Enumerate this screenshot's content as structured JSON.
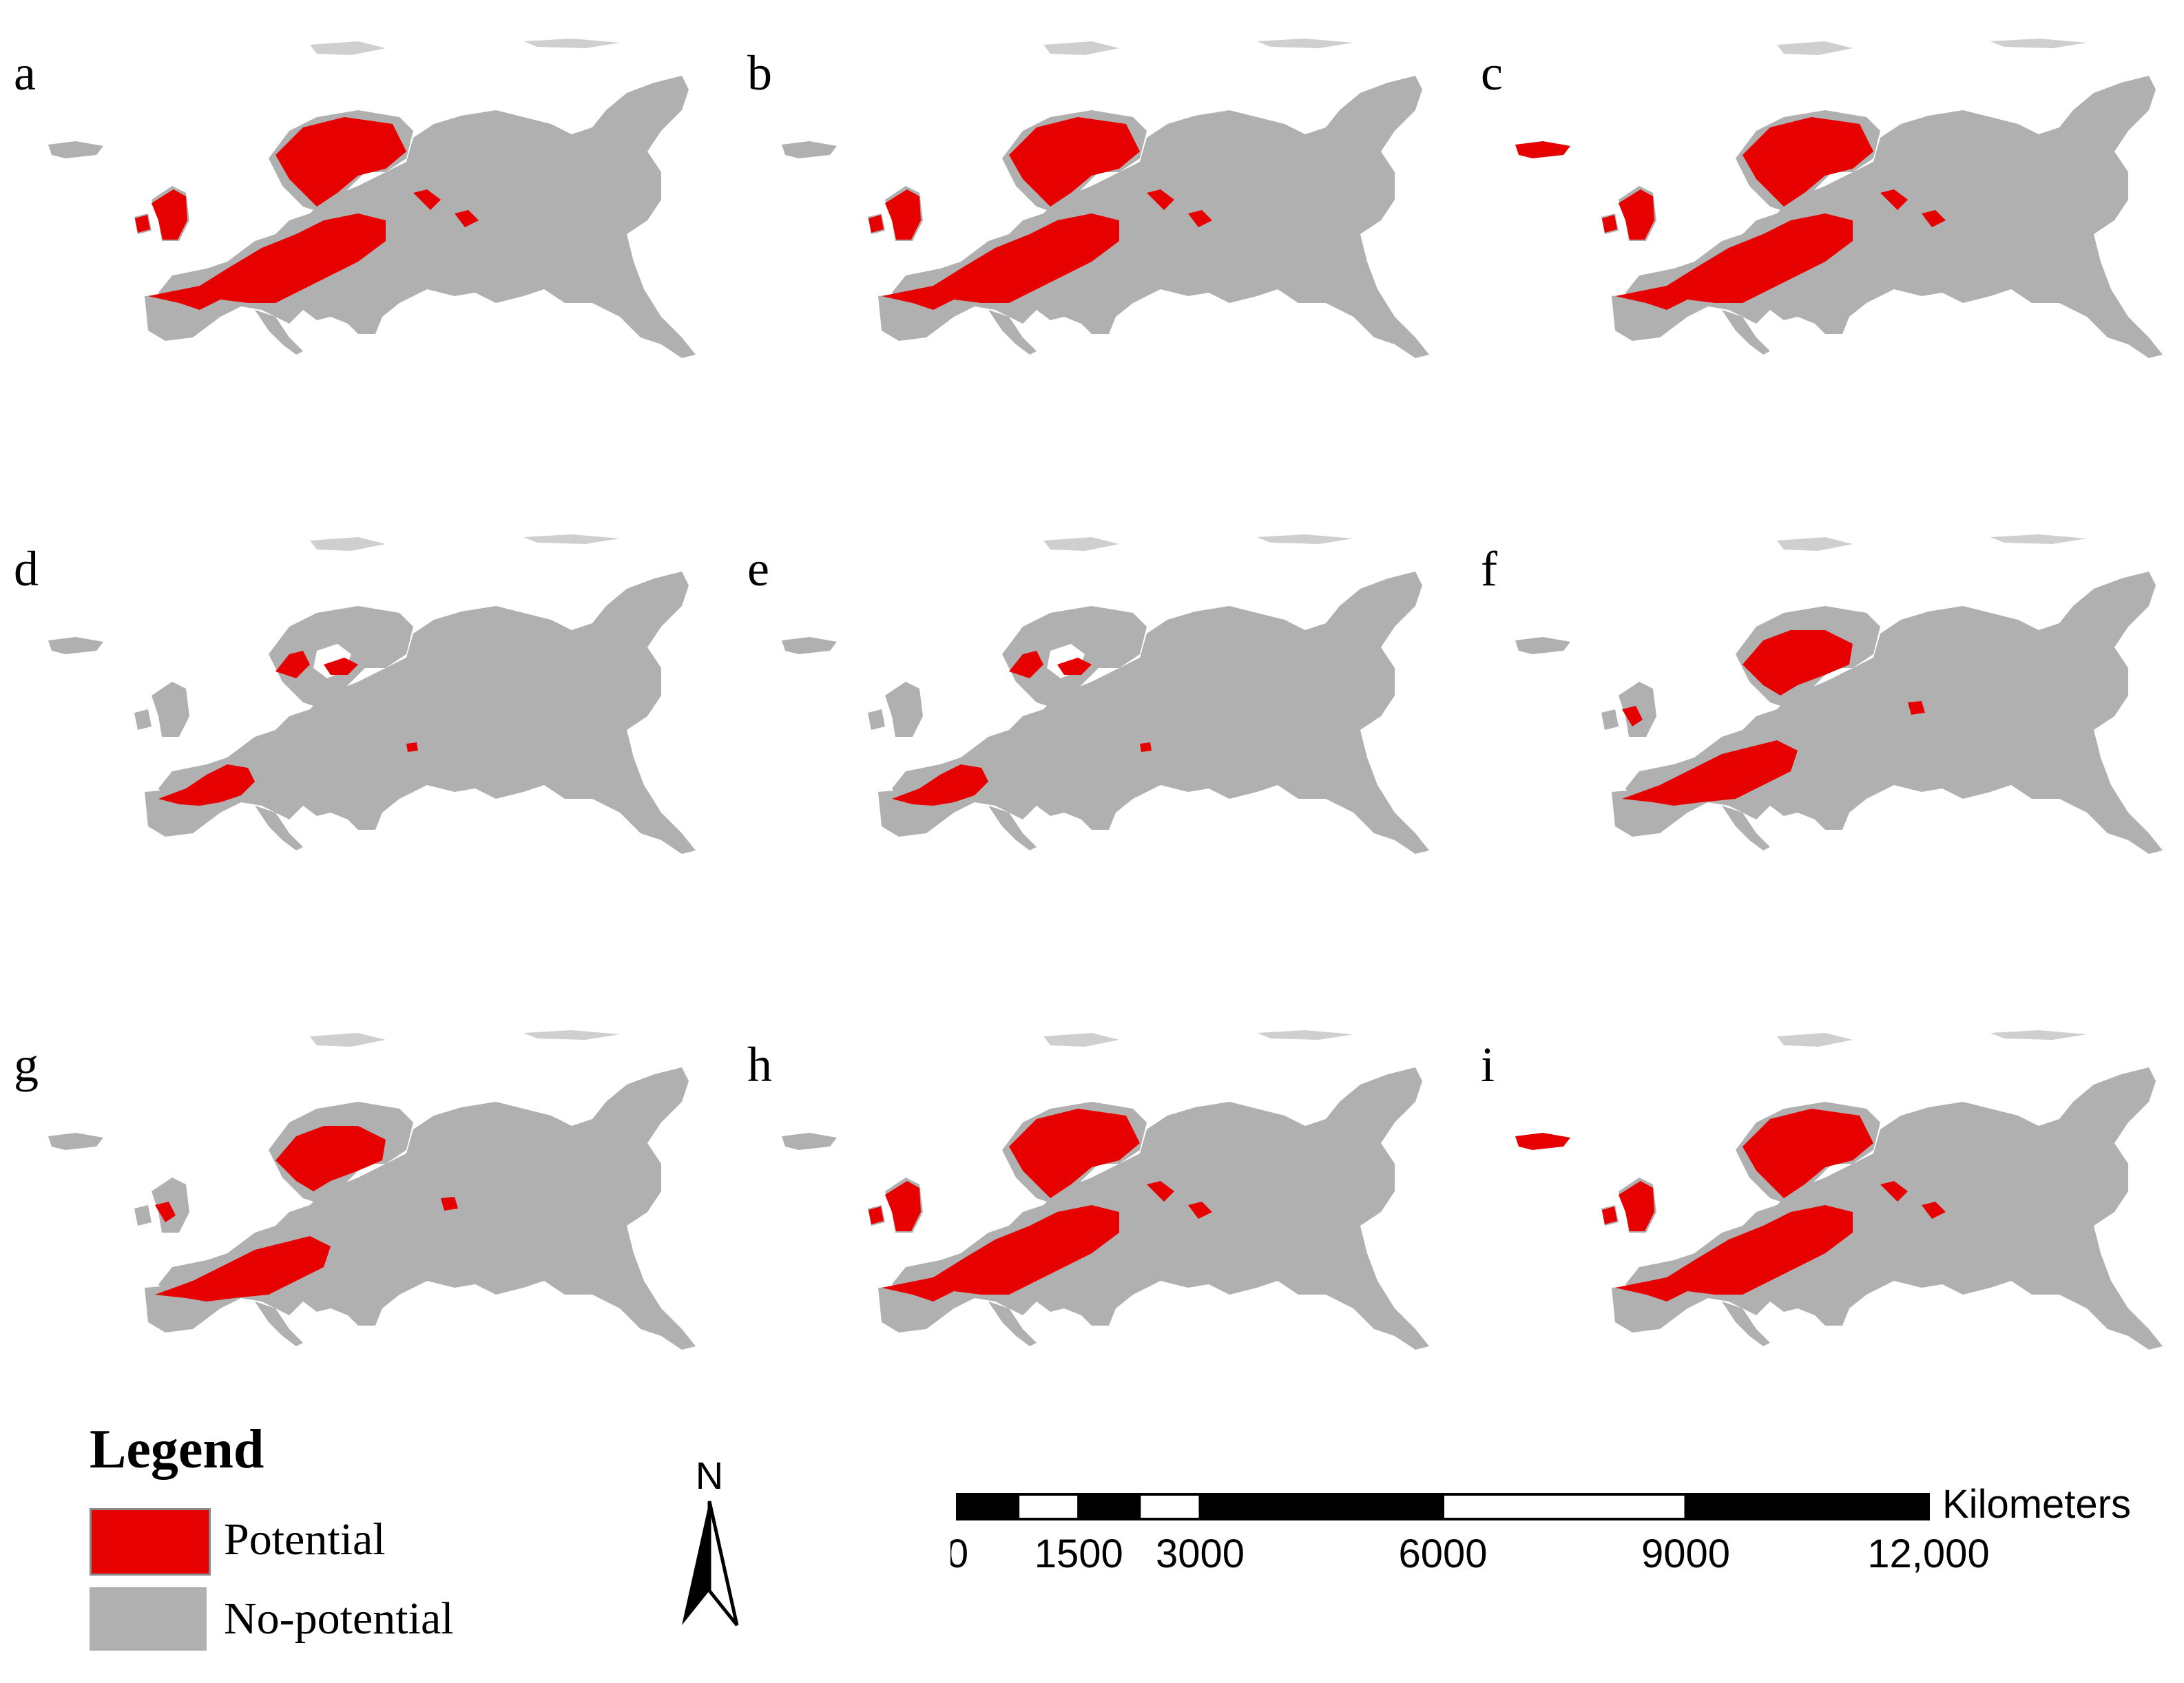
{
  "colors": {
    "potential": "#e60000",
    "no_potential": "#b0b0b0",
    "scale_dark": "#000000",
    "scale_light": "#ffffff"
  },
  "panels": [
    {
      "letter": "a",
      "potential_extent": "large"
    },
    {
      "letter": "b",
      "potential_extent": "large"
    },
    {
      "letter": "c",
      "potential_extent": "large"
    },
    {
      "letter": "d",
      "potential_extent": "small"
    },
    {
      "letter": "e",
      "potential_extent": "small"
    },
    {
      "letter": "f",
      "potential_extent": "medium"
    },
    {
      "letter": "g",
      "potential_extent": "medium"
    },
    {
      "letter": "h",
      "potential_extent": "large"
    },
    {
      "letter": "i",
      "potential_extent": "large"
    }
  ],
  "legend": {
    "title": "Legend",
    "items": [
      {
        "label": "Potential",
        "color": "#e60000"
      },
      {
        "label": "No-potential",
        "color": "#b0b0b0"
      }
    ]
  },
  "north_arrow": {
    "label": "N",
    "icon": "north-arrow-icon"
  },
  "scale_bar": {
    "unit": "Kilometers",
    "tick_labels": [
      "0",
      "1500",
      "3000",
      "6000",
      "9000",
      "12,000"
    ],
    "tick_values": [
      0,
      1500,
      3000,
      6000,
      9000,
      12000
    ],
    "max_value": 12000
  }
}
